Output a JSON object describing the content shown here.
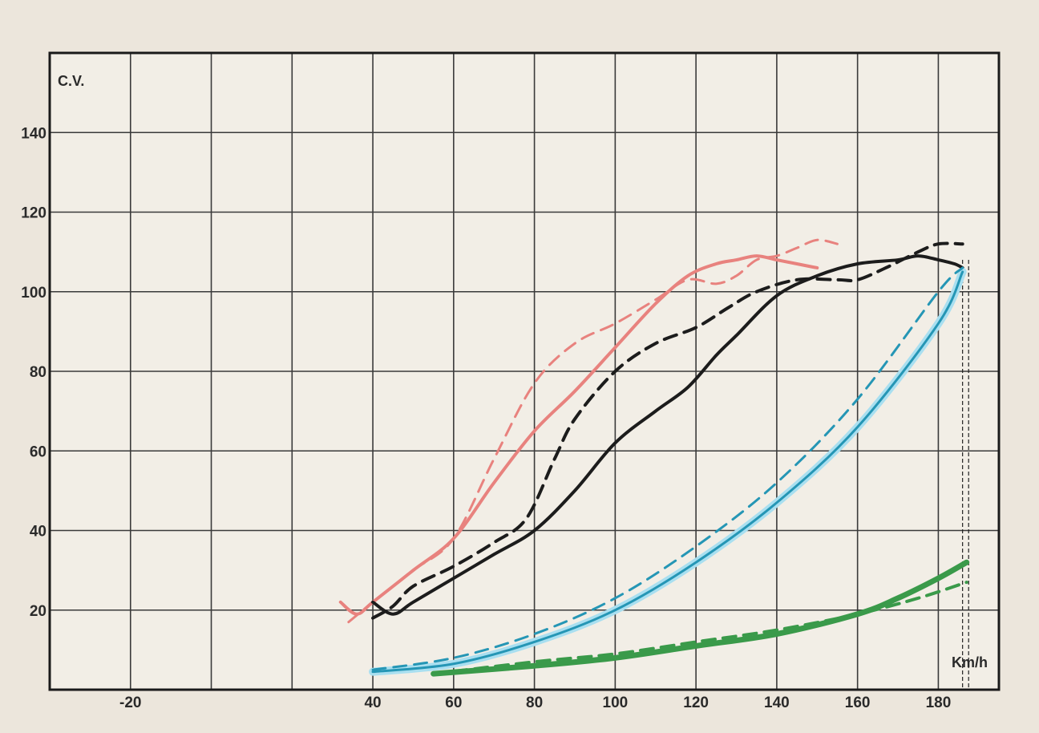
{
  "chart_data": {
    "type": "line",
    "ylabel": "C.V.",
    "xunit": "Km/h",
    "xlim": [
      -40,
      195
    ],
    "ylim": [
      0,
      160
    ],
    "x_grid_step": 20,
    "y_grid_step": 20,
    "x_tick_labels": [
      {
        "value": -20,
        "text": "-20"
      },
      {
        "value": 40,
        "text": "40"
      },
      {
        "value": 60,
        "text": "60"
      },
      {
        "value": 80,
        "text": "80"
      },
      {
        "value": 100,
        "text": "100"
      },
      {
        "value": 120,
        "text": "120"
      },
      {
        "value": 140,
        "text": "140"
      },
      {
        "value": 160,
        "text": "160"
      },
      {
        "value": 180,
        "text": "180"
      }
    ],
    "y_tick_labels": [
      {
        "value": 20,
        "text": "20"
      },
      {
        "value": 40,
        "text": "40"
      },
      {
        "value": 60,
        "text": "60"
      },
      {
        "value": 80,
        "text": "80"
      },
      {
        "value": 100,
        "text": "100"
      },
      {
        "value": 120,
        "text": "120"
      },
      {
        "value": 140,
        "text": "140"
      }
    ],
    "grid": true,
    "vertical_markers": [
      186,
      187.5
    ],
    "series": [
      {
        "color": "#e8827e",
        "style": "solid",
        "width": 4,
        "points": [
          [
            32,
            22
          ],
          [
            36,
            19
          ],
          [
            40,
            22
          ],
          [
            50,
            30
          ],
          [
            60,
            38
          ],
          [
            70,
            52
          ],
          [
            80,
            65
          ],
          [
            90,
            75
          ],
          [
            100,
            86
          ],
          [
            110,
            97
          ],
          [
            118,
            104
          ],
          [
            125,
            107
          ],
          [
            130,
            108
          ],
          [
            135,
            109
          ],
          [
            140,
            108
          ],
          [
            145,
            107
          ],
          [
            150,
            106
          ]
        ]
      },
      {
        "color": "#e8827e",
        "style": "dashed",
        "width": 3,
        "points": [
          [
            34,
            17
          ],
          [
            40,
            22
          ],
          [
            50,
            30
          ],
          [
            60,
            38
          ],
          [
            70,
            58
          ],
          [
            80,
            77
          ],
          [
            90,
            87
          ],
          [
            100,
            92
          ],
          [
            110,
            98
          ],
          [
            118,
            103
          ],
          [
            125,
            102
          ],
          [
            130,
            104
          ],
          [
            135,
            108
          ],
          [
            140,
            109
          ],
          [
            145,
            111
          ],
          [
            150,
            113
          ],
          [
            155,
            112
          ]
        ]
      },
      {
        "color": "#1c1c1c",
        "style": "solid",
        "width": 4,
        "points": [
          [
            40,
            22
          ],
          [
            45,
            19
          ],
          [
            50,
            22
          ],
          [
            60,
            28
          ],
          [
            70,
            34
          ],
          [
            80,
            40
          ],
          [
            90,
            50
          ],
          [
            100,
            62
          ],
          [
            110,
            70
          ],
          [
            118,
            76
          ],
          [
            125,
            84
          ],
          [
            130,
            89
          ],
          [
            140,
            99
          ],
          [
            150,
            104
          ],
          [
            160,
            107
          ],
          [
            170,
            108
          ],
          [
            175,
            109
          ],
          [
            180,
            108
          ],
          [
            184,
            107
          ],
          [
            186,
            106
          ]
        ]
      },
      {
        "color": "#1c1c1c",
        "style": "dashed",
        "width": 4,
        "points": [
          [
            40,
            18
          ],
          [
            45,
            21
          ],
          [
            50,
            26
          ],
          [
            60,
            31
          ],
          [
            70,
            37
          ],
          [
            78,
            43
          ],
          [
            85,
            58
          ],
          [
            90,
            68
          ],
          [
            100,
            80
          ],
          [
            110,
            87
          ],
          [
            120,
            91
          ],
          [
            128,
            96
          ],
          [
            135,
            100
          ],
          [
            145,
            103
          ],
          [
            155,
            103
          ],
          [
            160,
            103
          ],
          [
            167,
            106
          ],
          [
            175,
            110
          ],
          [
            180,
            112
          ],
          [
            186,
            112
          ]
        ]
      },
      {
        "color": "#a9dff0",
        "style": "solid",
        "width": 10,
        "points": [
          [
            40,
            4.5
          ],
          [
            60,
            6.5
          ],
          [
            80,
            12
          ],
          [
            100,
            20
          ],
          [
            120,
            32
          ],
          [
            140,
            47
          ],
          [
            160,
            66
          ],
          [
            180,
            92
          ],
          [
            186,
            105
          ]
        ]
      },
      {
        "color": "#2596b5",
        "style": "solid",
        "width": 3,
        "points": [
          [
            40,
            4.5
          ],
          [
            60,
            6.5
          ],
          [
            80,
            12
          ],
          [
            100,
            20
          ],
          [
            120,
            32
          ],
          [
            140,
            47
          ],
          [
            160,
            66
          ],
          [
            180,
            92
          ],
          [
            186,
            105
          ]
        ]
      },
      {
        "color": "#2596b5",
        "style": "dashed",
        "width": 3,
        "points": [
          [
            40,
            5
          ],
          [
            60,
            8
          ],
          [
            80,
            14
          ],
          [
            100,
            23
          ],
          [
            120,
            36
          ],
          [
            140,
            52
          ],
          [
            160,
            73
          ],
          [
            180,
            100
          ],
          [
            186,
            106
          ]
        ]
      },
      {
        "color": "#3a9a4a",
        "style": "solid",
        "width": 7,
        "points": [
          [
            55,
            4
          ],
          [
            80,
            6
          ],
          [
            100,
            8
          ],
          [
            120,
            11
          ],
          [
            140,
            14
          ],
          [
            160,
            19
          ],
          [
            170,
            23
          ],
          [
            180,
            28
          ],
          [
            187,
            32
          ]
        ]
      },
      {
        "color": "#3a9a4a",
        "style": "dashed",
        "width": 4,
        "points": [
          [
            55,
            4
          ],
          [
            80,
            7
          ],
          [
            100,
            9
          ],
          [
            120,
            12
          ],
          [
            140,
            15
          ],
          [
            160,
            19
          ],
          [
            175,
            23
          ],
          [
            187,
            27
          ]
        ]
      }
    ]
  }
}
